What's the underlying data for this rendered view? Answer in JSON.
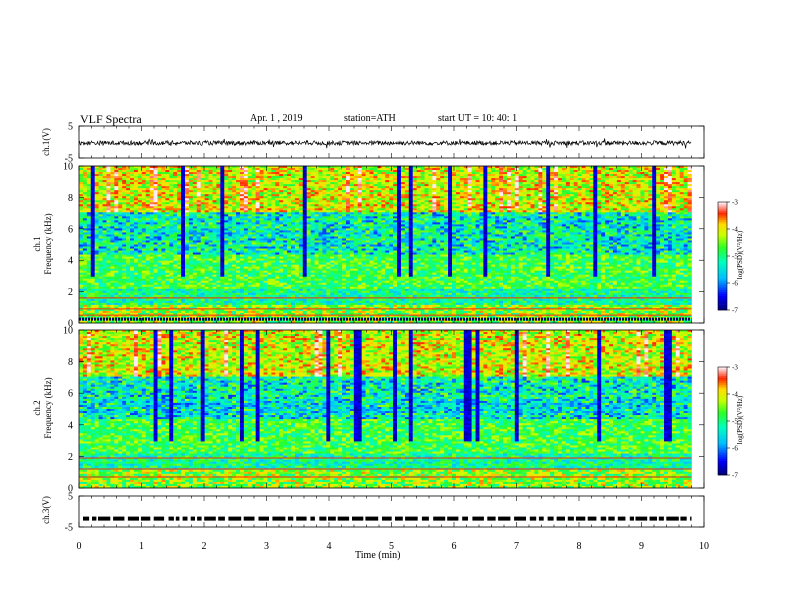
{
  "header": {
    "title": "VLF  Spectra",
    "date": "Apr. 1  , 2019",
    "station": "station=ATH",
    "start": "start  UT  =    10: 40: 1"
  },
  "labels": {
    "ch1_waveform": "ch.1(V)",
    "ch1_spec": "ch.1",
    "ch2_spec": "ch.2",
    "freq": "Frequency  (kHz)",
    "ch3_waveform": "ch.3(V)",
    "xlabel": "Time  (min)",
    "colorbar": "log(PSD)(V²/Hz)"
  },
  "chart_data": [
    {
      "type": "line",
      "name": "ch1-waveform",
      "ylabel": "ch.1(V)",
      "ylim": [
        -5,
        5
      ],
      "yticks": [
        "5",
        "-5"
      ],
      "xlim": [
        0,
        10
      ],
      "x_end": 9.8,
      "level": -0.3,
      "amplitude": 1.0
    },
    {
      "type": "heatmap",
      "name": "ch1-spectrogram",
      "ylabel": "Frequency  (kHz)",
      "ylim": [
        0,
        10
      ],
      "yticks": [
        "0",
        "2",
        "4",
        "6",
        "8",
        "10"
      ],
      "xlim": [
        0,
        10
      ],
      "x_end": 9.8,
      "colorbar": {
        "label": "log(PSD)(V²/Hz)",
        "range": [
          -7,
          -3
        ],
        "ticks": [
          "-3",
          "-4",
          "-5",
          "-6",
          "-7"
        ]
      }
    },
    {
      "type": "heatmap",
      "name": "ch2-spectrogram",
      "ylabel": "Frequency  (kHz)",
      "ylim": [
        0,
        10
      ],
      "yticks": [
        "0",
        "2",
        "4",
        "6",
        "8",
        "10"
      ],
      "xlim": [
        0,
        10
      ],
      "x_end": 9.8,
      "colorbar": {
        "label": "log(PSD)(V²/Hz)",
        "range": [
          -7,
          -3
        ],
        "ticks": [
          "-3",
          "-4",
          "-5",
          "-6",
          "-7"
        ]
      }
    },
    {
      "type": "line",
      "name": "ch3-waveform",
      "ylabel": "ch.3(V)",
      "ylim": [
        -5,
        5
      ],
      "yticks": [
        "5",
        "-5"
      ],
      "xlim": [
        0,
        10
      ],
      "x_end": 9.8,
      "level": -2.3,
      "xlabel": "Time  (min)",
      "xticks": [
        "0",
        "1",
        "2",
        "3",
        "4",
        "5",
        "6",
        "7",
        "8",
        "9",
        "10"
      ]
    }
  ]
}
